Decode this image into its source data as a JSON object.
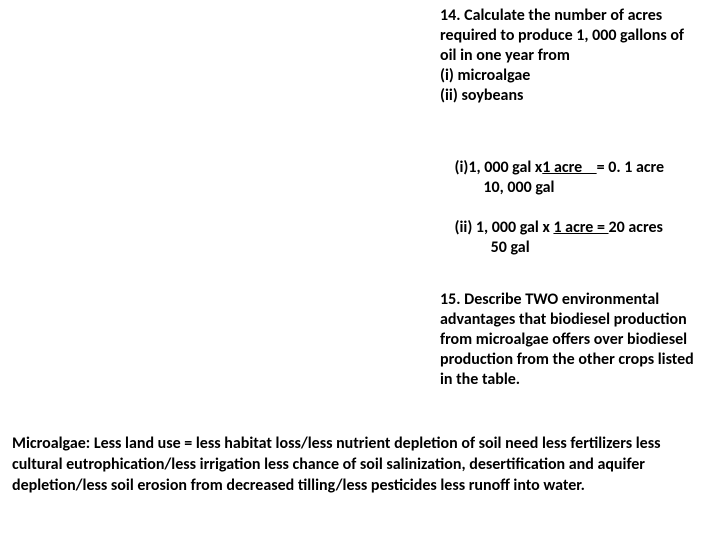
{
  "q14": {
    "prompt": "14. Calculate the number of acres required to produce 1, 000 gallons of oil in one year from",
    "part_i": "(i) microalgae",
    "part_ii": "(ii) soybeans"
  },
  "ans_i": {
    "line1_a": "(i)1, 000 gal x",
    "line1_b": "1 acre    ",
    "line1_c": "= 0. 1 acre",
    "line2": "            10, 000 gal"
  },
  "ans_ii": {
    "line1_a": "(ii) 1, 000 gal x ",
    "line1_b": "1 acre = ",
    "line1_c": "20 acres",
    "line2": "              50 gal"
  },
  "q15": {
    "prompt": "15. Describe TWO environmental advantages that biodiesel production from microalgae offers over biodiesel production from the other crops listed in the table."
  },
  "microalgae": {
    "text": "Microalgae: Less land use = less habitat loss/less nutrient depletion of soil need less fertilizers less cultural eutrophication/less irrigation less chance of soil salinization, desertification and aquifer depletion/less soil erosion from decreased tilling/less pesticides less runoff into water."
  },
  "style": {
    "background_color": "#ffffff",
    "text_color": "#000000",
    "font_family": "Calibri, Arial, sans-serif",
    "font_size_pt": 12,
    "font_weight": "700"
  }
}
